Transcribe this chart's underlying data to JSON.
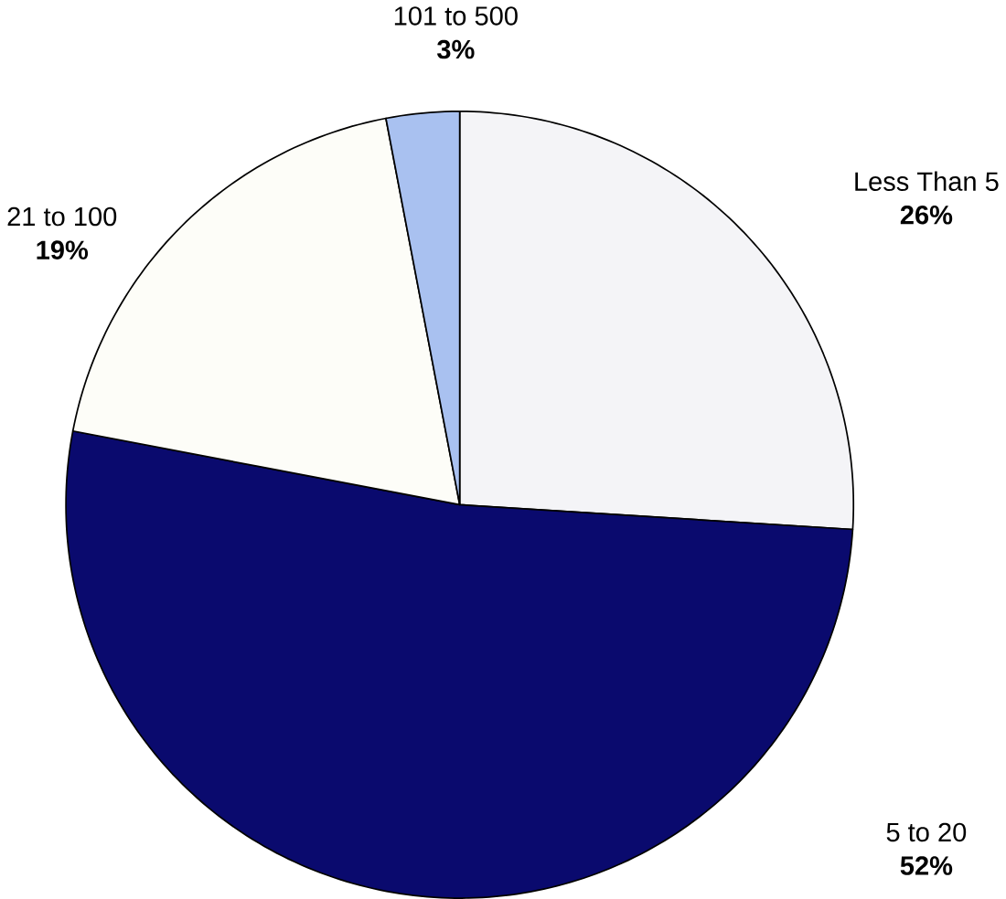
{
  "chart_data": {
    "type": "pie",
    "categories": [
      "Less Than 5",
      "5 to 20",
      "21 to 100",
      "101 to 500"
    ],
    "values": [
      26,
      52,
      19,
      3
    ],
    "value_labels": [
      "26%",
      "52%",
      "19%",
      "3%"
    ],
    "colors": [
      "#f4f4f7",
      "#0a0a6e",
      "#fdfdf8",
      "#a9c1f0"
    ]
  }
}
